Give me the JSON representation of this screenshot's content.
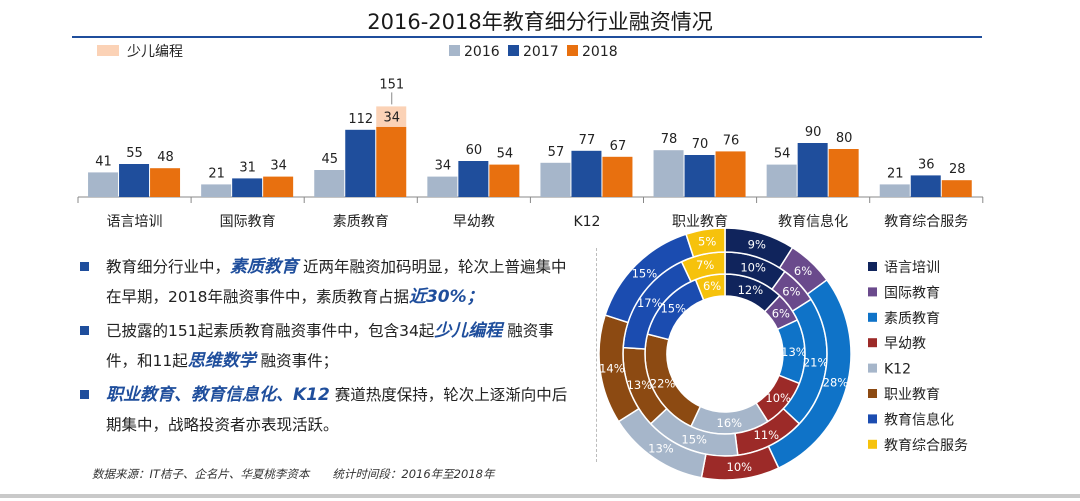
{
  "title": "2016-2018年教育细分行业融资情况",
  "source": "数据来源：IT桔子、企名片、华夏桃李资本　　统计时间段：2016年至2018年",
  "bullets": [
    {
      "parts": [
        {
          "t": "教育细分行业中，",
          "h": false
        },
        {
          "t": "素质教育",
          "h": true
        },
        {
          "t": " 近两年融资加码明显，轮次上普遍集中在早期，2018年融资事件中，素质教育占据",
          "h": false
        },
        {
          "t": "近30%；",
          "h": true
        }
      ]
    },
    {
      "parts": [
        {
          "t": "已披露的151起素质教育融资事件中，包含34起",
          "h": false
        },
        {
          "t": "少儿编程",
          "h": true
        },
        {
          "t": " 融资事件，和11起",
          "h": false
        },
        {
          "t": "思维数学",
          "h": true
        },
        {
          "t": " 融资事件；",
          "h": false
        }
      ]
    },
    {
      "parts": [
        {
          "t": "职业教育、教育信息化、K12",
          "h": true
        },
        {
          "t": " 赛道热度保持，轮次上逐渐向中后期集中，战略投资者亦表现活跃。",
          "h": false
        }
      ]
    }
  ],
  "chart_data": [
    {
      "type": "bar",
      "categories": [
        "语言培训",
        "国际教育",
        "素质教育",
        "早幼教",
        "K12",
        "职业教育",
        "教育信息化",
        "教育综合服务"
      ],
      "series": [
        {
          "name": "2016",
          "color": "#a6b6ca",
          "values": [
            41,
            21,
            45,
            34,
            57,
            78,
            54,
            21
          ]
        },
        {
          "name": "2017",
          "color": "#1f4e9c",
          "values": [
            55,
            31,
            112,
            60,
            77,
            70,
            90,
            36
          ]
        },
        {
          "name": "2018",
          "color": "#e8700f",
          "values": [
            48,
            34,
            117,
            54,
            67,
            76,
            80,
            28
          ]
        }
      ],
      "stacked_extra": {
        "category": "素质教育",
        "series": "2018",
        "name": "少儿编程",
        "value": 34,
        "total_label": "151",
        "color": "#fbd2b6"
      },
      "legend": [
        "少儿编程",
        "2016",
        "2017",
        "2018"
      ]
    },
    {
      "type": "pie",
      "variant": "donut-rings",
      "rings": [
        "2016",
        "2017",
        "2018"
      ],
      "categories": [
        {
          "name": "语言培训",
          "color": "#10245c"
        },
        {
          "name": "国际教育",
          "color": "#6a4a8c"
        },
        {
          "name": "素质教育",
          "color": "#0f73c8"
        },
        {
          "name": "早幼教",
          "color": "#9c2a28"
        },
        {
          "name": "K12",
          "color": "#a6b6ca"
        },
        {
          "name": "职业教育",
          "color": "#8c4a12"
        },
        {
          "name": "教育信息化",
          "color": "#1b4cb0"
        },
        {
          "name": "教育综合服务",
          "color": "#f6c20c"
        }
      ],
      "values": {
        "2016": [
          12,
          6,
          13,
          10,
          16,
          22,
          15,
          6
        ],
        "2017": [
          10,
          6,
          21,
          11,
          15,
          13,
          17,
          7
        ],
        "2018": [
          9,
          6,
          28,
          10,
          13,
          14,
          15,
          5
        ]
      },
      "labels": {
        "2016": [
          "12%",
          "6%",
          "13%",
          "10%",
          "16%",
          "22%",
          "15%",
          "6%"
        ],
        "2017": [
          "10%",
          "6%",
          "21%",
          "11%",
          "15%",
          "13%",
          "17%",
          "7%"
        ],
        "2018": [
          "9%",
          "6%",
          "28%",
          "10%",
          "13%",
          "14%",
          "15%",
          "5%"
        ]
      }
    }
  ]
}
